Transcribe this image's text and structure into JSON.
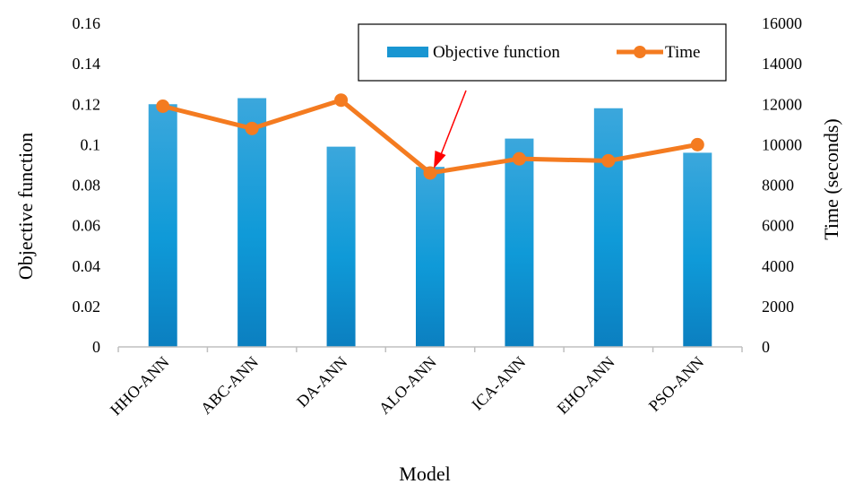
{
  "chart_data": {
    "type": "bar",
    "categories": [
      "HHO-ANN",
      "ABC-ANN",
      "DA-ANN",
      "ALO-ANN",
      "ICA-ANN",
      "EHO-ANN",
      "PSO-ANN"
    ],
    "series": [
      {
        "name": "Objective function",
        "kind": "bar",
        "axis": "left",
        "values": [
          0.12,
          0.123,
          0.099,
          0.089,
          0.103,
          0.118,
          0.096
        ]
      },
      {
        "name": "Time",
        "kind": "line",
        "axis": "right",
        "values": [
          11900,
          10800,
          12200,
          8600,
          9300,
          9200,
          10000
        ]
      }
    ],
    "xlabel": "Model",
    "ylabel": "Objective function",
    "y2label": "Time (seconds)",
    "ylim": [
      0,
      0.16
    ],
    "y2lim": [
      0,
      16000
    ],
    "yticks": [
      "0",
      "0.02",
      "0.04",
      "0.06",
      "0.08",
      "0.1",
      "0.12",
      "0.14",
      "0.16"
    ],
    "y2ticks": [
      "0",
      "2000",
      "4000",
      "6000",
      "8000",
      "10000",
      "12000",
      "14000",
      "16000"
    ],
    "legend_position": "top-right",
    "grid": false,
    "annotation": {
      "type": "arrow",
      "points_to": "ALO-ANN",
      "color": "#ff0000"
    },
    "colors": {
      "bar": "#1996d2",
      "line": "#f47b20",
      "arrow": "#ff0000",
      "axis": "#bfbfbf"
    }
  }
}
